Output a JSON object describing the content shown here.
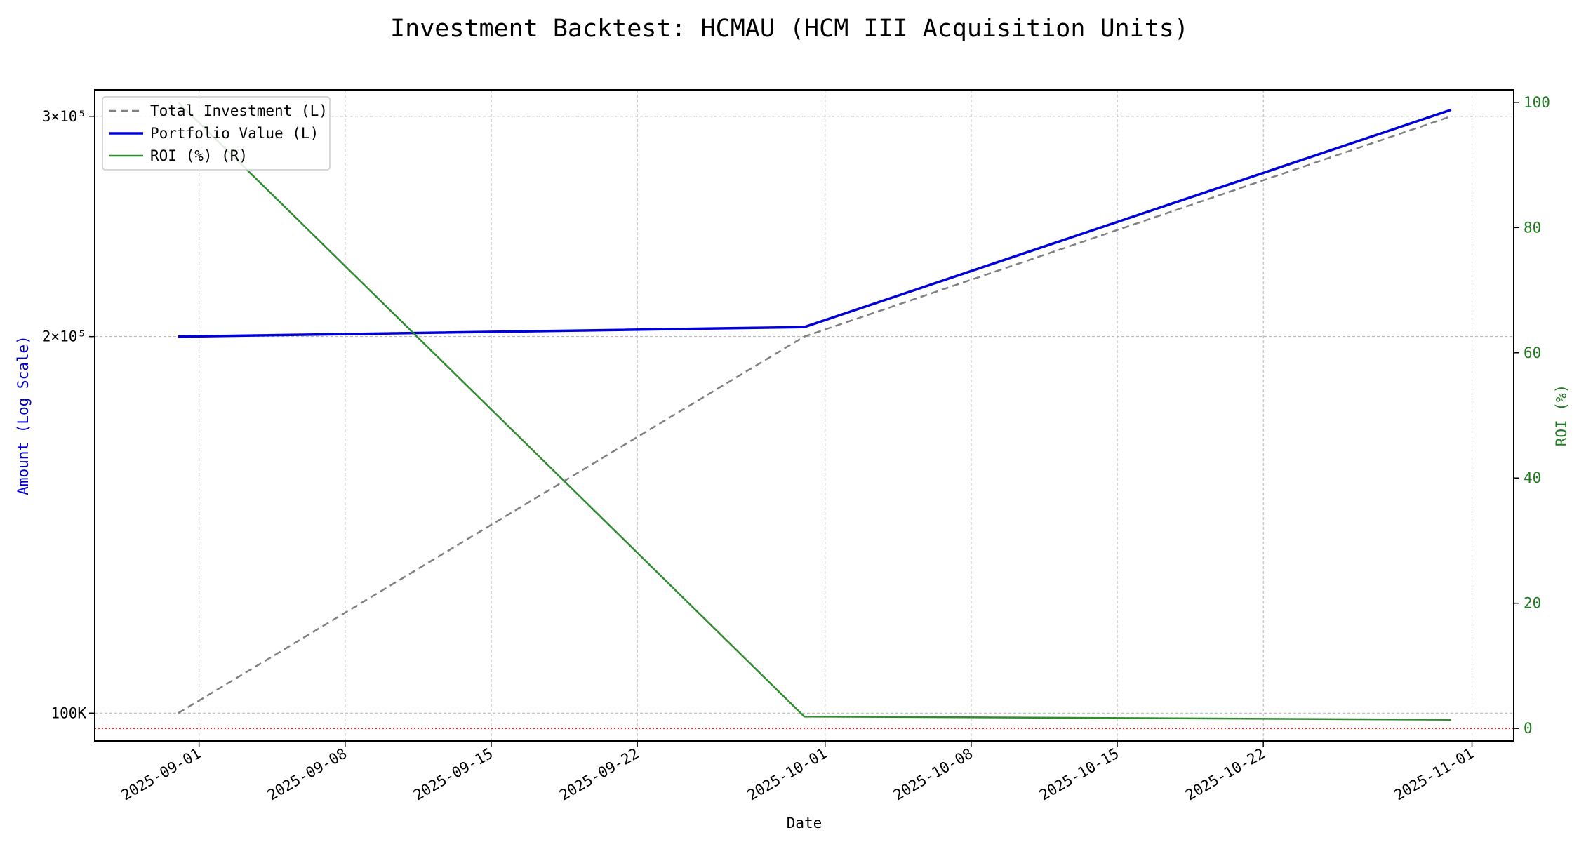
{
  "chart_data": {
    "type": "line",
    "title": "Investment Backtest: HCMAU (HCM III Acquisition Units)",
    "xlabel": "Date",
    "ylabel_left": "Amount (Log Scale)",
    "ylabel_right": "ROI (%)",
    "left_scale": "log",
    "left_ylim": [
      95000,
      315000
    ],
    "right_ylim": [
      -2,
      102
    ],
    "xlim": [
      "2025-08-27",
      "2025-11-03"
    ],
    "grid": true,
    "legend_position": "top-left",
    "x_ticks": [
      "2025-09-01",
      "2025-09-08",
      "2025-09-15",
      "2025-09-22",
      "2025-10-01",
      "2025-10-08",
      "2025-10-15",
      "2025-10-22",
      "2025-11-01"
    ],
    "left_ticks": [
      {
        "value": 100000,
        "label": "100K",
        "color": "#0000cc"
      },
      {
        "value": 200000,
        "label": "2×10⁵",
        "color": "#000000"
      },
      {
        "value": 300000,
        "label": "3×10⁵",
        "color": "#000000"
      }
    ],
    "right_ticks": [
      0,
      20,
      40,
      60,
      80,
      100
    ],
    "reference_line": {
      "axis": "right",
      "value": 0,
      "color": "#ff0000",
      "style": "dotted"
    },
    "x": [
      "2025-08-31",
      "2025-09-30",
      "2025-10-31"
    ],
    "series": [
      {
        "name": "Total Investment (L)",
        "axis": "left",
        "color": "#808080",
        "style": "dashed",
        "values": [
          100000,
          200000,
          300000
        ]
      },
      {
        "name": "Portfolio Value (L)",
        "axis": "left",
        "color": "#0000dd",
        "style": "solid",
        "values": [
          200000,
          203500,
          303600
        ]
      },
      {
        "name": "ROI (%) (R)",
        "axis": "right",
        "color": "#2e8b2e",
        "style": "solid",
        "values": [
          100,
          1.9,
          1.4
        ]
      }
    ]
  }
}
